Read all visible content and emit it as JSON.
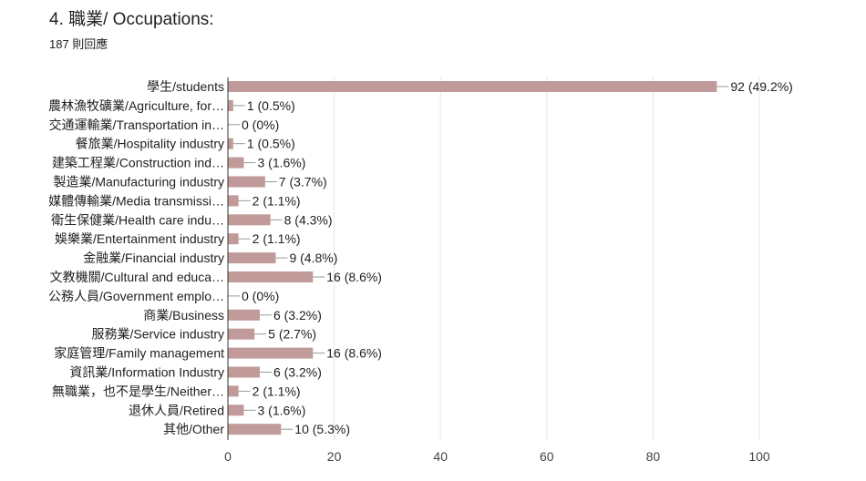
{
  "header": {
    "title": "4. 職業/ Occupations:",
    "responses": "187 則回應"
  },
  "chart_data": {
    "type": "bar",
    "orientation": "horizontal",
    "categories": [
      "學生/students",
      "農林漁牧礦業/Agriculture, for…",
      "交通運輸業/Transportation in…",
      "餐旅業/Hospitality industry",
      "建築工程業/Construction ind…",
      "製造業/Manufacturing industry",
      "媒體傳輸業/Media transmissi…",
      "衛生保健業/Health care indu…",
      "娛樂業/Entertainment industry",
      "金融業/Financial industry",
      "文教機關/Cultural and educa…",
      "公務人員/Government emplo…",
      "商業/Business",
      "服務業/Service industry",
      "家庭管理/Family management",
      "資訊業/Information Industry",
      "無職業，也不是學生/Neither…",
      "退休人員/Retired",
      "其他/Other"
    ],
    "values": [
      92,
      1,
      0,
      1,
      3,
      7,
      2,
      8,
      2,
      9,
      16,
      0,
      6,
      5,
      16,
      6,
      2,
      3,
      10
    ],
    "data_labels": [
      "92 (49.2%)",
      "1 (0.5%)",
      "0 (0%)",
      "1 (0.5%)",
      "3 (1.6%)",
      "7 (3.7%)",
      "2 (1.1%)",
      "8 (4.3%)",
      "2 (1.1%)",
      "9 (4.8%)",
      "16 (8.6%)",
      "0 (0%)",
      "6 (3.2%)",
      "5 (2.7%)",
      "16 (8.6%)",
      "6 (3.2%)",
      "2 (1.1%)",
      "3 (1.6%)",
      "10 (5.3%)"
    ],
    "xlim": [
      0,
      100
    ],
    "xticks": [
      0,
      20,
      40,
      60,
      80,
      100
    ],
    "grid": true,
    "bar_color": "#c19a9a",
    "grid_color": "#e6e6e6",
    "axis_color": "#333333",
    "leader_color": "#9a9a9a"
  }
}
